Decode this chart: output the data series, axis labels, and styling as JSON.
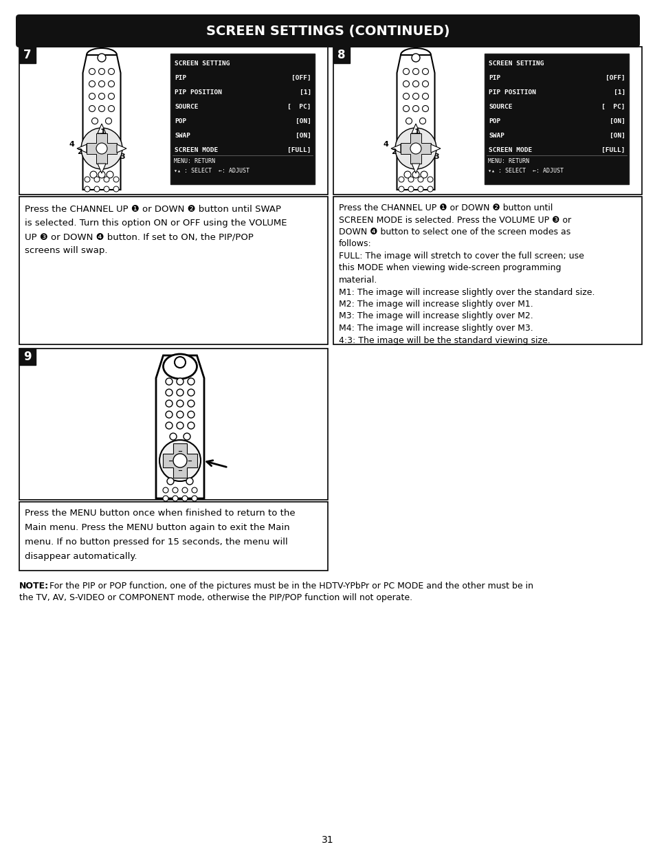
{
  "title": "SCREEN SETTINGS (CONTINUED)",
  "title_bg": "#1a1a1a",
  "title_color": "#ffffff",
  "page_number": "31",
  "bg_color": "#ffffff",
  "menu_lines": [
    [
      "SCREEN SETTING",
      ""
    ],
    [
      "PIP",
      "[OFF]"
    ],
    [
      "PIP POSITION",
      "[1]"
    ],
    [
      "SOURCE",
      "[  PC]"
    ],
    [
      "POP",
      "[ON]"
    ],
    [
      "SWAP",
      "[ON]"
    ],
    [
      "SCREEN MODE",
      "[FULL]"
    ]
  ],
  "menu_footer1": "MENU: RETURN",
  "menu_footer2": "▾▴ : SELECT  ←: ADJUST",
  "text7_lines": [
    "Press the CHANNEL UP ❶ or DOWN ❷ button until SWAP",
    "is selected. Turn this option ON or OFF using the VOLUME",
    "UP ❸ or DOWN ❹ button. If set to ON, the PIP/POP",
    "screens will swap."
  ],
  "text8_lines": [
    "Press the CHANNEL UP ❶ or DOWN ❷ button until",
    "SCREEN MODE is selected. Press the VOLUME UP ❸ or",
    "DOWN ❹ button to select one of the screen modes as",
    "follows:",
    "FULL: The image will stretch to cover the full screen; use",
    "this MODE when viewing wide-screen programming",
    "material.",
    "M1: The image will increase slightly over the standard size.",
    "M2: The image will increase slightly over M1.",
    "M3: The image will increase slightly over M2.",
    "M4: The image will increase slightly over M3.",
    "4:3: The image will be the standard viewing size."
  ],
  "text9_lines": [
    "Press the MENU button once when finished to return to the",
    "Main menu. Press the MENU button again to exit the Main",
    "menu. If no button pressed for 15 seconds, the menu will",
    "disappear automatically."
  ],
  "note_bold": "NOTE:",
  "note_rest1": " For the PIP or POP function, one of the pictures must be in the HDTV-YPbPr or PC MODE and the other must be in",
  "note_rest2": "the TV, AV, S-VIDEO or COMPONENT mode, otherwise the PIP/POP function will not operate."
}
